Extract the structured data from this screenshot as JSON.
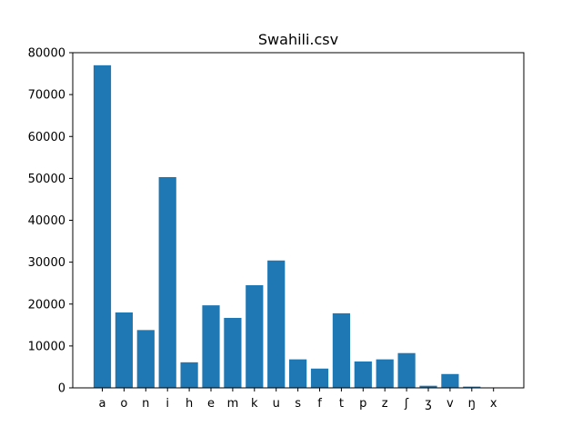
{
  "chart_data": {
    "type": "bar",
    "title": "Swahili.csv",
    "xlabel": "",
    "ylabel": "",
    "categories": [
      "a",
      "o",
      "n",
      "i",
      "h",
      "e",
      "m",
      "k",
      "u",
      "s",
      "f",
      "t",
      "p",
      "z",
      "ʃ",
      "ʒ",
      "v",
      "ŋ",
      "x"
    ],
    "values": [
      77000,
      18000,
      13800,
      50300,
      6100,
      19700,
      16700,
      24500,
      30400,
      6800,
      4600,
      17800,
      6300,
      6800,
      8300,
      500,
      3300,
      300,
      100
    ],
    "ylim": [
      0,
      80000
    ],
    "yticks": [
      0,
      10000,
      20000,
      30000,
      40000,
      50000,
      60000,
      70000,
      80000
    ],
    "bar_color": "#1f77b4",
    "grid": false,
    "legend": "none"
  }
}
